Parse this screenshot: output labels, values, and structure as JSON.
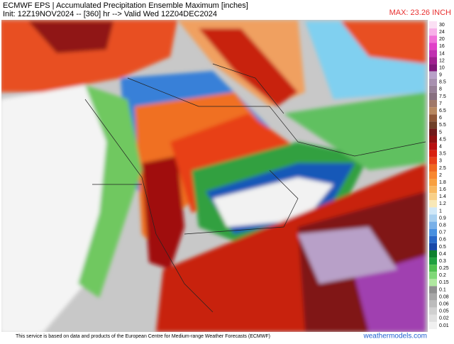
{
  "header": {
    "title": "ECMWF EPS | Accumulated Precipitation Ensemble Maximum [inches]",
    "init": "Init: 12Z19NOV2024 -- [360] hr --> Valid Wed 12Z04DEC2024",
    "max": "MAX: 23.26 INCH"
  },
  "legend": {
    "labels": [
      "30",
      "24",
      "20",
      "16",
      "14",
      "12",
      "10",
      "9",
      "8.5",
      "8",
      "7.5",
      "7",
      "6.5",
      "6",
      "5.5",
      "5",
      "4.5",
      "4",
      "3.5",
      "3",
      "2.5",
      "2",
      "1.8",
      "1.6",
      "1.4",
      "1.2",
      "1",
      "0.9",
      "0.8",
      "0.7",
      "0.6",
      "0.5",
      "0.4",
      "0.3",
      "0.25",
      "0.2",
      "0.15",
      "0.1",
      "0.08",
      "0.06",
      "0.05",
      "0.02",
      "0.01"
    ],
    "colors": [
      "#fbe0f4",
      "#f7b0e8",
      "#f070d8",
      "#e040c8",
      "#c030b0",
      "#a02090",
      "#801878",
      "#b8a0c8",
      "#a890b0",
      "#988098",
      "#887080",
      "#a07868",
      "#b88860",
      "#905838",
      "#704028",
      "#701818",
      "#901010",
      "#b81010",
      "#d82010",
      "#e84018",
      "#f06820",
      "#f88830",
      "#f8a040",
      "#f8b860",
      "#f8d088",
      "#f8e8b8",
      "#d0e8f8",
      "#a8d0f0",
      "#78b0e8",
      "#4890e0",
      "#2868c8",
      "#1848a8",
      "#108030",
      "#20a040",
      "#50c050",
      "#80d878",
      "#b0e8a0",
      "#909090",
      "#a8a8a8",
      "#bcbcbc",
      "#d0d0d0",
      "#e0e0e0",
      "#f0f0f0"
    ]
  },
  "footer": {
    "credit": "This service is based on data and products of the European Centre for Medium-range Weather Forecasts (ECMWF)",
    "brand": "weathermodels.com"
  }
}
